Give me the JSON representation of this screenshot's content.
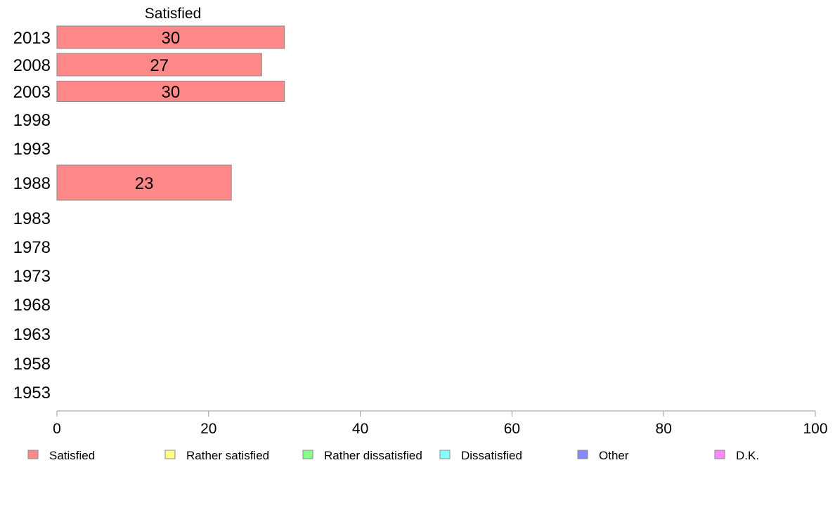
{
  "chart_data": {
    "type": "bar",
    "orientation": "horizontal",
    "stacked": true,
    "column_header": "Satisfied",
    "categories": [
      "2013",
      "2008",
      "2003",
      "1998",
      "1993",
      "1988",
      "1983",
      "1978",
      "1973",
      "1968",
      "1963",
      "1958",
      "1953"
    ],
    "series": [
      {
        "name": "Satisfied",
        "color": "#ff8888",
        "values": [
          30,
          27,
          30,
          null,
          null,
          23,
          null,
          null,
          null,
          null,
          null,
          null,
          null
        ],
        "labels": [
          "30",
          "27",
          "30",
          "",
          "",
          "23",
          "",
          "",
          "",
          "",
          "",
          "",
          ""
        ]
      },
      {
        "name": "Rather satisfied",
        "color": "#ffff88",
        "values": [
          null,
          null,
          null,
          null,
          null,
          null,
          null,
          null,
          null,
          null,
          null,
          null,
          null
        ]
      },
      {
        "name": "Rather dissatisfied",
        "color": "#88ff88",
        "values": [
          null,
          null,
          null,
          null,
          null,
          null,
          null,
          null,
          null,
          null,
          null,
          null,
          null
        ]
      },
      {
        "name": "Dissatisfied",
        "color": "#88ffff",
        "values": [
          null,
          null,
          null,
          null,
          null,
          null,
          null,
          null,
          null,
          null,
          null,
          null,
          null
        ]
      },
      {
        "name": "Other",
        "color": "#8888ff",
        "values": [
          null,
          null,
          null,
          null,
          null,
          null,
          null,
          null,
          null,
          null,
          null,
          null,
          null
        ]
      },
      {
        "name": "D.K.",
        "color": "#ff88ff",
        "values": [
          null,
          null,
          null,
          null,
          null,
          null,
          null,
          null,
          null,
          null,
          null,
          null,
          null
        ]
      }
    ],
    "xlim": [
      0,
      100
    ],
    "xticks": [
      0,
      20,
      40,
      60,
      80,
      100
    ],
    "grid": false,
    "legend_position": "bottom"
  }
}
